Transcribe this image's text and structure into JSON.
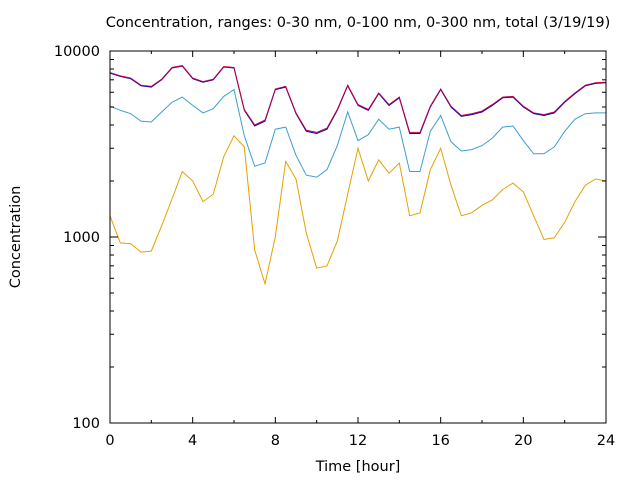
{
  "chart_data": {
    "type": "line",
    "title": "Concentration, ranges: 0-30 nm, 0-100 nm, 0-300 nm, total (3/19/19)",
    "xlabel": "Time [hour]",
    "ylabel": "Concentration",
    "xlim": [
      0,
      24
    ],
    "ylim": [
      100,
      10000
    ],
    "yscale": "log",
    "grid": false,
    "legend": "none",
    "x_ticks": [
      "0",
      "4",
      "8",
      "12",
      "16",
      "20",
      "24"
    ],
    "y_ticks": [
      "100",
      "1000",
      "10000"
    ],
    "x": [
      0,
      0.5,
      1,
      1.5,
      2,
      2.5,
      3,
      3.5,
      4,
      4.5,
      5,
      5.5,
      6,
      6.5,
      7,
      7.5,
      8,
      8.5,
      9,
      9.5,
      10,
      10.5,
      11,
      11.5,
      12,
      12.5,
      13,
      13.5,
      14,
      14.5,
      15,
      15.5,
      16,
      16.5,
      17,
      17.5,
      18,
      18.5,
      19,
      19.5,
      20,
      20.5,
      21,
      21.5,
      22,
      22.5,
      23,
      23.5,
      24
    ],
    "series": [
      {
        "color": "#e6a000",
        "values": [
          1300,
          930,
          920,
          830,
          840,
          1150,
          1600,
          2250,
          2000,
          1550,
          1700,
          2700,
          3500,
          3050,
          850,
          560,
          1000,
          2550,
          2050,
          1050,
          680,
          700,
          950,
          1700,
          3000,
          2000,
          2600,
          2200,
          2500,
          1300,
          1350,
          2300,
          3000,
          1900,
          1300,
          1350,
          1480,
          1580,
          1800,
          1950,
          1750,
          1300,
          970,
          990,
          1200,
          1550,
          1900,
          2050,
          2000
        ]
      },
      {
        "color": "#3aa0d0",
        "values": [
          5050,
          4800,
          4600,
          4200,
          4150,
          4700,
          5300,
          5650,
          5100,
          4650,
          4900,
          5700,
          6200,
          3500,
          2400,
          2500,
          3800,
          3900,
          2750,
          2150,
          2100,
          2300,
          3100,
          4700,
          3300,
          3550,
          4300,
          3800,
          3900,
          2250,
          2250,
          3700,
          4500,
          3250,
          2900,
          2950,
          3100,
          3400,
          3900,
          3950,
          3300,
          2800,
          2800,
          3050,
          3700,
          4300,
          4600,
          4650,
          4650
        ]
      },
      {
        "color": "#0000c0",
        "values": [
          7600,
          7300,
          7100,
          6500,
          6400,
          7000,
          8100,
          8300,
          7100,
          6800,
          7000,
          8200,
          8100,
          4800,
          3950,
          4200,
          6200,
          6400,
          4600,
          3700,
          3600,
          3800,
          4800,
          6500,
          5100,
          4800,
          5900,
          5100,
          5600,
          3600,
          3600,
          5000,
          6200,
          5000,
          4450,
          4550,
          4700,
          5100,
          5600,
          5650,
          5000,
          4600,
          4500,
          4650,
          5300,
          5900,
          6500,
          6700,
          6750
        ]
      },
      {
        "color": "#c00040",
        "values": [
          7650,
          7350,
          7150,
          6550,
          6450,
          7050,
          8150,
          8350,
          7150,
          6850,
          7050,
          8250,
          8150,
          4850,
          4000,
          4250,
          6250,
          6450,
          4650,
          3750,
          3650,
          3850,
          4850,
          6550,
          5150,
          4850,
          5950,
          5150,
          5650,
          3650,
          3650,
          5050,
          6250,
          5050,
          4500,
          4600,
          4750,
          5150,
          5650,
          5700,
          5050,
          4650,
          4550,
          4700,
          5350,
          5950,
          6550,
          6750,
          6800
        ]
      }
    ]
  }
}
